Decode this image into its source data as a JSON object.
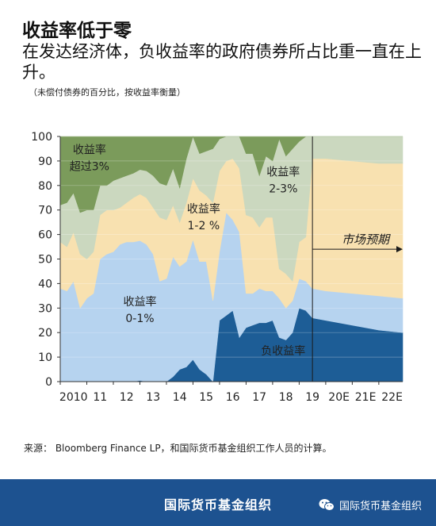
{
  "header": {
    "title": "收益率低于零",
    "subtitle": "在发达经济体，负收益率的政府债券所占比重一直在上升。",
    "note": "（未偿付债券的百分比，按收益率衡量）"
  },
  "source": "来源： Bloomberg Finance LP，和国际货币基金组织工作人员的计算。",
  "footer": {
    "org": "国际货币基金组织",
    "wechat_icon": "wechat-icon",
    "wechat_label": "国际货币基金组织"
  },
  "colors": {
    "negative": "#1d5d96",
    "y0_1": "#b6d3ef",
    "y1_2": "#f8e1b0",
    "y2_3": "#cbd8bf",
    "over3": "#7b9b5b",
    "grid": "#c8c8c8",
    "footer": "#1d5290"
  },
  "chart_data": {
    "type": "area",
    "stacked": true,
    "xlim": [
      2010.0,
      2022.9
    ],
    "ylim": [
      0,
      100
    ],
    "yticks": [
      0,
      10,
      20,
      30,
      40,
      50,
      60,
      70,
      80,
      90,
      100
    ],
    "xticks": [
      {
        "x": 2010.0,
        "label": "2010"
      },
      {
        "x": 2011.0,
        "label": "11"
      },
      {
        "x": 2012.0,
        "label": "12"
      },
      {
        "x": 2013.0,
        "label": "13"
      },
      {
        "x": 2014.0,
        "label": "14"
      },
      {
        "x": 2015.0,
        "label": "15"
      },
      {
        "x": 2016.0,
        "label": "16"
      },
      {
        "x": 2017.0,
        "label": "17"
      },
      {
        "x": 2018.0,
        "label": "18"
      },
      {
        "x": 2019.0,
        "label": "19"
      },
      {
        "x": 2020.0,
        "label": "20E"
      },
      {
        "x": 2021.0,
        "label": "21E"
      },
      {
        "x": 2022.0,
        "label": "22E"
      }
    ],
    "grid": true,
    "forecast_start": 2019.5,
    "forecast_label": "市场预期",
    "x": [
      2010.0,
      2010.25,
      2010.5,
      2010.75,
      2011.0,
      2011.25,
      2011.5,
      2011.75,
      2012.0,
      2012.25,
      2012.5,
      2012.75,
      2013.0,
      2013.25,
      2013.5,
      2013.75,
      2014.0,
      2014.25,
      2014.5,
      2014.75,
      2015.0,
      2015.25,
      2015.5,
      2015.75,
      2016.0,
      2016.25,
      2016.5,
      2016.75,
      2017.0,
      2017.25,
      2017.5,
      2017.75,
      2018.0,
      2018.25,
      2018.5,
      2018.75,
      2019.0,
      2019.25,
      2019.5,
      2020.0,
      2021.0,
      2022.0,
      2022.9
    ],
    "series": [
      {
        "name": "负收益率",
        "values": [
          0,
          0,
          0,
          0,
          0,
          0,
          0,
          0,
          0,
          0,
          0,
          0,
          0.5,
          0,
          0,
          0,
          0,
          2,
          5,
          6,
          9,
          5,
          3,
          0,
          25,
          27,
          29,
          18,
          22,
          23,
          24,
          24,
          25,
          18,
          17,
          20,
          30,
          29,
          26,
          25,
          23,
          21,
          20
        ]
      },
      {
        "name": "收益率0-1%",
        "values": [
          38,
          37,
          41,
          30,
          34,
          36,
          50,
          52,
          53,
          56,
          57,
          57,
          57,
          56,
          52,
          41,
          42,
          49,
          42,
          43,
          49,
          44,
          46,
          33,
          28,
          42,
          37,
          43,
          14,
          13,
          14,
          13,
          12,
          16,
          13,
          13,
          12,
          12,
          12,
          12,
          13,
          14,
          14
        ]
      },
      {
        "name": "收益率1-2 %",
        "values": [
          19,
          18,
          20,
          22,
          16,
          17,
          18,
          18,
          17,
          15,
          16,
          18,
          19,
          19,
          19,
          26,
          24,
          21,
          18,
          24,
          25,
          29,
          27,
          40,
          33,
          21,
          25,
          26,
          32,
          31,
          25,
          30,
          30,
          12,
          14,
          8,
          15,
          18,
          53,
          54,
          54,
          54,
          55
        ]
      },
      {
        "name": "收益率2-3%",
        "values": [
          15,
          18,
          16,
          17,
          20,
          17,
          12,
          10,
          12,
          12,
          11,
          10,
          10,
          11,
          13,
          14,
          14,
          15,
          14,
          18,
          17,
          15,
          18,
          22,
          13,
          10,
          9,
          13,
          25,
          26,
          21,
          25,
          23,
          53,
          48,
          54,
          41,
          41,
          9,
          9,
          10,
          11,
          11
        ]
      },
      {
        "name": "收益率超过3%",
        "values": [
          28,
          27,
          23,
          31,
          30,
          30,
          20,
          20,
          18,
          17,
          16,
          15,
          13.5,
          14,
          16,
          19,
          20,
          13,
          21,
          9,
          0,
          7,
          6,
          5,
          1,
          0,
          0,
          0,
          7,
          7,
          16,
          8,
          10,
          1,
          8,
          5,
          2,
          0,
          0,
          0,
          0,
          0,
          0
        ]
      }
    ],
    "annotations": [
      {
        "text": "收益率\n超过3%",
        "x": 2011.1,
        "y": 93
      },
      {
        "text": "收益率\n1-2 %",
        "x": 2015.4,
        "y": 69
      },
      {
        "text": "收益率\n2-3%",
        "x": 2018.4,
        "y": 84
      },
      {
        "text": "收益率\n0-1%",
        "x": 2013.0,
        "y": 31
      },
      {
        "text": "负收益率",
        "x": 2018.4,
        "y": 11
      }
    ]
  }
}
